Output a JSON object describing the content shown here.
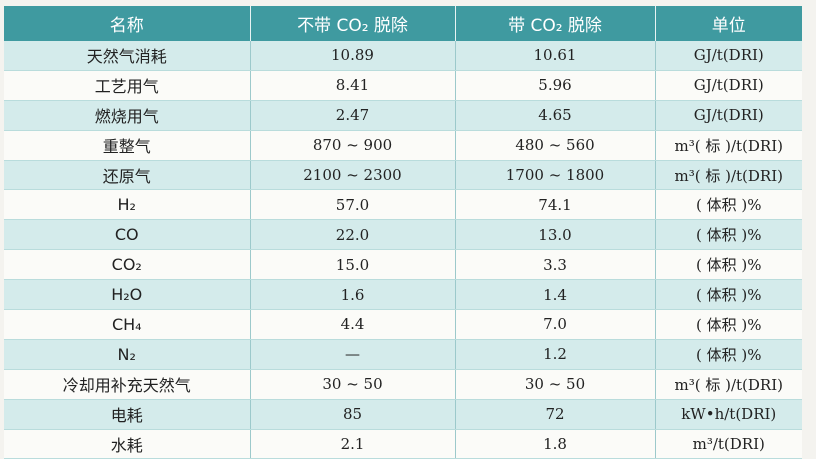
{
  "table": {
    "header": [
      "名称",
      "不带 CO₂ 脱除",
      "带 CO₂ 脱除",
      "单位"
    ],
    "rows": [
      [
        "天然气消耗",
        "10.89",
        "10.61",
        "GJ/t(DRI)"
      ],
      [
        "工艺用气",
        "8.41",
        "5.96",
        "GJ/t(DRI)"
      ],
      [
        "燃烧用气",
        "2.47",
        "4.65",
        "GJ/t(DRI)"
      ],
      [
        "重整气",
        "870 ~ 900",
        "480 ~ 560",
        "m³( 标 )/t(DRI)"
      ],
      [
        "还原气",
        "2100 ~ 2300",
        "1700 ~ 1800",
        "m³( 标 )/t(DRI)"
      ],
      [
        "H₂",
        "57.0",
        "74.1",
        "( 体积 )%"
      ],
      [
        "CO",
        "22.0",
        "13.0",
        "( 体积 )%"
      ],
      [
        "CO₂",
        "15.0",
        "3.3",
        "( 体积 )%"
      ],
      [
        "H₂O",
        "1.6",
        "1.4",
        "( 体积 )%"
      ],
      [
        "CH₄",
        "4.4",
        "7.0",
        "( 体积 )%"
      ],
      [
        "N₂",
        "—",
        "1.2",
        "( 体积 )%"
      ],
      [
        "冷却用补充天然气",
        "30 ~ 50",
        "30 ~ 50",
        "m³( 标 )/t(DRI)"
      ],
      [
        "电耗",
        "85",
        "72",
        "kW•h/t(DRI)"
      ],
      [
        "水耗",
        "2.1",
        "1.8",
        "m³/t(DRI)"
      ]
    ]
  }
}
